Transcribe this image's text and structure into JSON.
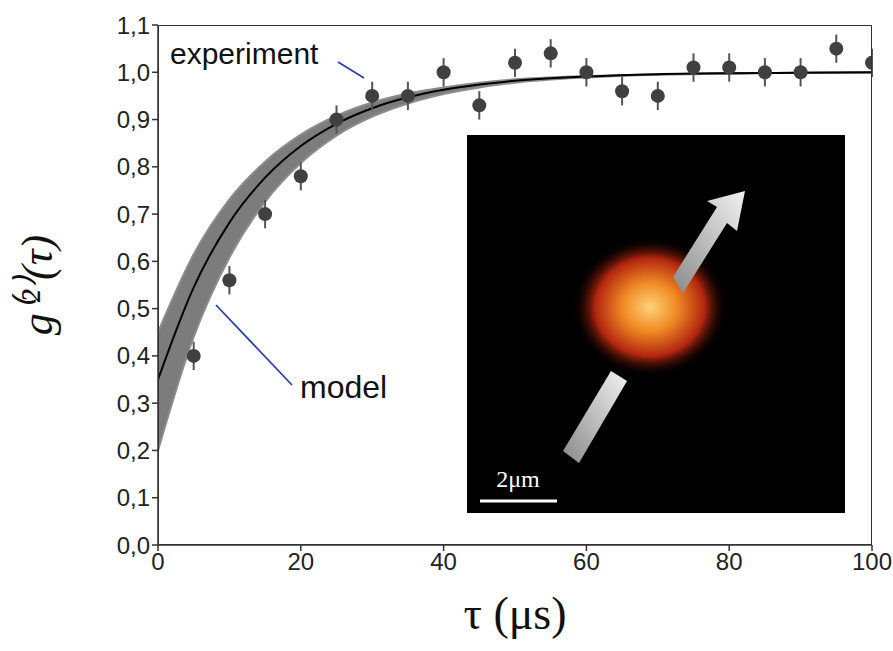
{
  "chart_data": {
    "type": "scatter",
    "xlabel": "τ (μs)",
    "ylabel": "g⁽²⁾(τ)",
    "xlim": [
      0,
      100
    ],
    "ylim": [
      0,
      1.1
    ],
    "xticks": [
      0,
      20,
      40,
      60,
      80,
      100
    ],
    "yticks": [
      {
        "value": 0,
        "label": "0,0"
      },
      {
        "value": 0.1,
        "label": "0,1"
      },
      {
        "value": 0.2,
        "label": "0,2"
      },
      {
        "value": 0.3,
        "label": "0,3"
      },
      {
        "value": 0.4,
        "label": "0,4"
      },
      {
        "value": 0.5,
        "label": "0,5"
      },
      {
        "value": 0.6,
        "label": "0,6"
      },
      {
        "value": 0.7,
        "label": "0,7"
      },
      {
        "value": 0.8,
        "label": "0,8"
      },
      {
        "value": 0.9,
        "label": "0,9"
      },
      {
        "value": 1.0,
        "label": "1,0"
      },
      {
        "value": 1.1,
        "label": "1,1"
      }
    ],
    "grid": false,
    "series": [
      {
        "name": "experiment",
        "type": "scatter",
        "marker": "circle",
        "color": "#404040",
        "x": [
          5,
          10,
          15,
          20,
          25,
          30,
          35,
          40,
          45,
          50,
          55,
          60,
          65,
          70,
          75,
          80,
          85,
          90,
          95,
          100
        ],
        "values": [
          0.4,
          0.56,
          0.7,
          0.78,
          0.9,
          0.95,
          0.95,
          1.0,
          0.93,
          1.02,
          1.04,
          1.0,
          0.96,
          0.95,
          1.01,
          1.01,
          1.0,
          1.0,
          1.05,
          1.02
        ],
        "errors": [
          0.03,
          0.03,
          0.03,
          0.03,
          0.03,
          0.03,
          0.03,
          0.03,
          0.03,
          0.03,
          0.03,
          0.03,
          0.03,
          0.03,
          0.03,
          0.03,
          0.03,
          0.03,
          0.03,
          0.03
        ]
      },
      {
        "name": "model",
        "type": "line",
        "color": "#000000",
        "x": [
          0,
          5,
          10,
          15,
          20,
          25,
          30,
          35,
          40,
          45,
          50,
          60,
          70,
          80,
          90,
          100
        ],
        "values": [
          0.35,
          0.545,
          0.682,
          0.777,
          0.844,
          0.891,
          0.924,
          0.947,
          0.963,
          0.974,
          0.982,
          0.991,
          0.996,
          0.998,
          0.999,
          1.0
        ],
        "lower": [
          0.2,
          0.44,
          0.608,
          0.726,
          0.808,
          0.866,
          0.906,
          0.934,
          0.954,
          0.968,
          0.978,
          0.989,
          0.995,
          0.997,
          0.999,
          0.999
        ],
        "upper": [
          0.45,
          0.615,
          0.731,
          0.811,
          0.868,
          0.908,
          0.936,
          0.955,
          0.968,
          0.978,
          0.985,
          0.992,
          0.996,
          0.998,
          0.999,
          1.0
        ]
      }
    ],
    "inset_scale_bar": "2μm"
  }
}
